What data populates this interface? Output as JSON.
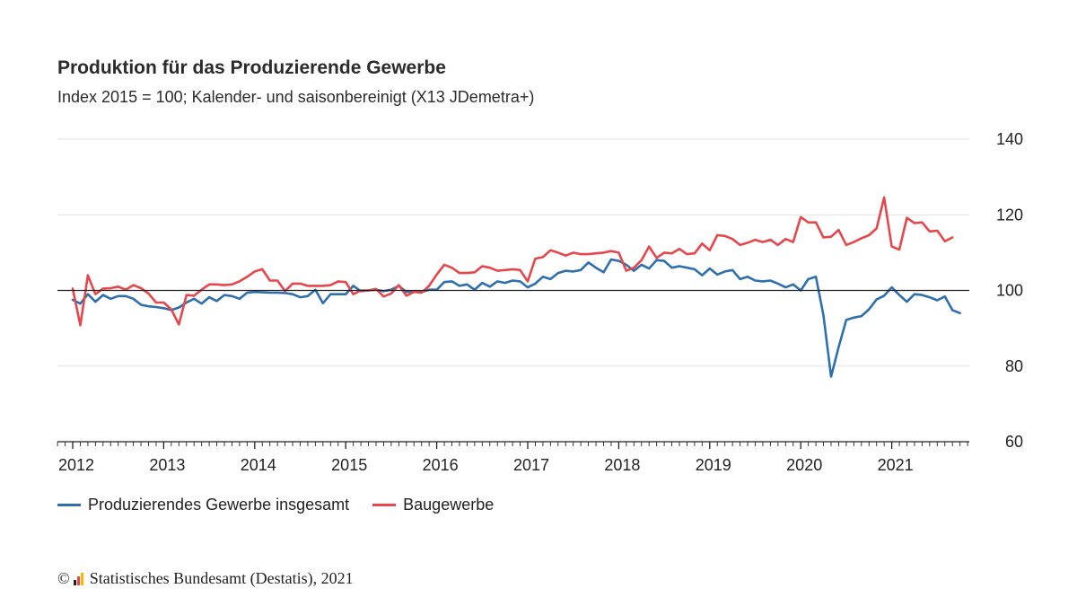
{
  "chart_data": {
    "type": "line",
    "title": "Produktion für das Produzierende Gewerbe",
    "subtitle": "Index 2015 = 100; Kalender- und saisonbereinigt (X13 JDemetra+)",
    "xlabel": "",
    "ylabel": "",
    "ylim": [
      60,
      140
    ],
    "yticks": [
      60,
      80,
      100,
      120,
      140
    ],
    "reference_line": 100,
    "x_start": "2012-01",
    "x_frequency": "monthly",
    "x_tick_labels": [
      "2012",
      "2013",
      "2014",
      "2015",
      "2016",
      "2017",
      "2018",
      "2019",
      "2020",
      "2021"
    ],
    "series": [
      {
        "name": "Produzierendes Gewerbe insgesamt",
        "color": "#2f6fad",
        "values": [
          97.5,
          96.5,
          99.0,
          97.0,
          98.8,
          97.8,
          98.5,
          98.5,
          97.8,
          96.2,
          95.8,
          95.6,
          95.3,
          94.8,
          95.5,
          96.8,
          97.8,
          96.5,
          98.2,
          97.2,
          98.8,
          98.5,
          97.8,
          99.4,
          99.6,
          99.5,
          99.4,
          99.4,
          99.3,
          99.0,
          98.2,
          98.5,
          100.2,
          96.6,
          99.0,
          99.0,
          99.0,
          101.2,
          99.8,
          100.0,
          100.2,
          99.8,
          100.2,
          101.2,
          99.6,
          99.8,
          99.6,
          100.2,
          100.2,
          102.2,
          102.4,
          101.2,
          101.6,
          100.2,
          102.0,
          101.0,
          102.4,
          102.0,
          102.6,
          102.4,
          100.8,
          101.8,
          103.6,
          103.0,
          104.6,
          105.2,
          105.0,
          105.4,
          107.4,
          106.0,
          104.8,
          108.2,
          107.8,
          106.8,
          105.2,
          106.8,
          105.8,
          108.0,
          107.8,
          106.0,
          106.4,
          106.0,
          105.6,
          104.0,
          105.8,
          104.2,
          105.0,
          105.4,
          103.0,
          103.6,
          102.6,
          102.4,
          102.6,
          101.8,
          100.8,
          101.6,
          100.0,
          103.0,
          103.6,
          93.4,
          77.2,
          85.0,
          92.2,
          92.8,
          93.2,
          95.0,
          97.6,
          98.6,
          100.8,
          98.8,
          97.0,
          99.0,
          98.8,
          98.2,
          97.4,
          98.4,
          94.8,
          94.0
        ]
      },
      {
        "name": "Baugewerbe",
        "color": "#e5474c",
        "values": [
          100.5,
          90.8,
          104.0,
          99.0,
          100.5,
          100.6,
          101.0,
          100.2,
          101.4,
          100.6,
          99.2,
          96.8,
          96.8,
          95.0,
          91.0,
          98.8,
          98.6,
          100.2,
          101.6,
          101.6,
          101.4,
          101.6,
          102.4,
          103.6,
          105.0,
          105.6,
          102.6,
          102.6,
          99.8,
          101.8,
          101.8,
          101.2,
          101.2,
          101.2,
          101.4,
          102.4,
          102.2,
          99.0,
          100.0,
          100.0,
          100.4,
          98.4,
          99.2,
          101.4,
          98.6,
          99.6,
          99.4,
          101.2,
          104.2,
          106.8,
          106.0,
          104.6,
          104.6,
          104.8,
          106.4,
          106.0,
          105.2,
          105.4,
          105.6,
          105.4,
          102.4,
          108.4,
          108.8,
          110.6,
          110.0,
          109.2,
          110.0,
          109.6,
          109.6,
          109.8,
          110.0,
          110.4,
          110.0,
          105.2,
          106.0,
          108.0,
          111.6,
          108.6,
          110.0,
          109.8,
          111.0,
          109.6,
          109.8,
          112.4,
          110.6,
          114.6,
          114.4,
          113.6,
          112.0,
          112.6,
          113.4,
          112.8,
          113.4,
          112.0,
          113.6,
          112.8,
          119.4,
          118.0,
          118.0,
          114.0,
          114.2,
          116.0,
          112.0,
          112.8,
          113.8,
          114.6,
          116.4,
          124.6,
          111.6,
          110.8,
          119.2,
          117.8,
          118.0,
          115.6,
          115.8,
          113.0,
          114.0
        ]
      }
    ]
  },
  "legend": {
    "items": [
      {
        "label": "Produzierendes Gewerbe insgesamt",
        "color": "#2f6fad"
      },
      {
        "label": "Baugewerbe",
        "color": "#e5474c"
      }
    ]
  },
  "footer": {
    "copyright_symbol": "©",
    "source": "Statistisches Bundesamt (Destatis), 2021",
    "logo_icon": "destatis-logo-icon",
    "logo_colors": [
      "#222222",
      "#e5474c",
      "#f5b800"
    ]
  }
}
